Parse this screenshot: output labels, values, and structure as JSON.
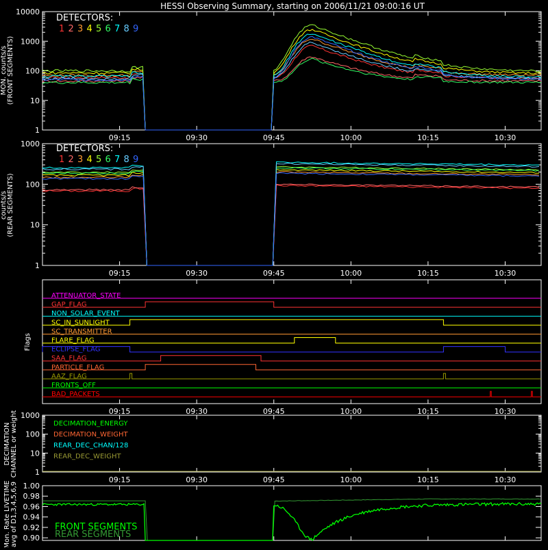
{
  "title": "HESSI Observing Summary, starting on 2006/11/21 09:00:16 UT",
  "time_ticks": [
    "09:15",
    "09:30",
    "09:45",
    "10:00",
    "10:15",
    "10:30"
  ],
  "detector_colors": [
    "#ff3333",
    "#ff6666",
    "#ff9933",
    "#ffff00",
    "#99ff33",
    "#33ff66",
    "#00ffff",
    "#66ccff",
    "#3366ff"
  ],
  "chart_data": [
    {
      "type": "line",
      "id": "front",
      "ylabel_lines": [
        "MON. counts/s",
        "(FRONT SEGMENTS)"
      ],
      "scale": "log",
      "ylim": [
        1,
        10000
      ],
      "ytick_labels": [
        "1",
        "10",
        "100",
        "1000",
        "10000"
      ],
      "legend": {
        "title": "DETECTORS:",
        "labels": [
          "1",
          "2",
          "3",
          "4",
          "5",
          "6",
          "7",
          "8",
          "9"
        ],
        "placement": "top-left"
      },
      "x_unit": "minutes after 09:00:16",
      "gap": [
        20,
        45
      ],
      "series": [
        {
          "base1": 60,
          "base2": 55,
          "peak": 700
        },
        {
          "base1": 45,
          "base2": 45,
          "peak": 300
        },
        {
          "base1": 70,
          "base2": 70,
          "peak": 1200
        },
        {
          "base1": 85,
          "base2": 80,
          "peak": 2500
        },
        {
          "base1": 100,
          "base2": 95,
          "peak": 3500
        },
        {
          "base1": 40,
          "base2": 40,
          "peak": 250
        },
        {
          "base1": 65,
          "base2": 60,
          "peak": 1800
        },
        {
          "base1": 55,
          "base2": 55,
          "peak": 900
        },
        {
          "base1": 50,
          "base2": 50,
          "peak": 1400
        }
      ]
    },
    {
      "type": "line",
      "id": "rear",
      "ylabel_lines": [
        "counts/s",
        "(REAR SEGMENTS)"
      ],
      "scale": "log",
      "ylim": [
        1,
        1000
      ],
      "ytick_labels": [
        "1",
        "10",
        "100",
        "1000"
      ],
      "legend": {
        "title": "DETECTORS:",
        "labels": [
          "1",
          "2",
          "3",
          "4",
          "5",
          "6",
          "7",
          "8",
          "9"
        ],
        "placement": "top-left"
      },
      "gap": [
        20,
        45
      ],
      "series": [
        {
          "level": 70
        },
        {
          "level": 75
        },
        {
          "level": 150
        },
        {
          "level": 170
        },
        {
          "level": 200
        },
        {
          "level": 190
        },
        {
          "level": 260
        },
        {
          "level": 240
        },
        {
          "level": 140
        }
      ]
    },
    {
      "type": "flags",
      "id": "flags",
      "ylabel": "Flags",
      "rows": [
        {
          "label": "ATTENUATOR_STATE",
          "color": "#ff00ff",
          "on": []
        },
        {
          "label": "GAP_FLAG",
          "color": "#ff3333",
          "on": [
            [
              20,
              45
            ]
          ]
        },
        {
          "label": "NON_SOLAR_EVENT",
          "color": "#00ffff",
          "on": []
        },
        {
          "label": "SC_IN_SUNLIGHT",
          "color": "#ffff00",
          "on": [
            [
              17,
              78
            ]
          ]
        },
        {
          "label": "SC_TRANSMITTER",
          "color": "#ff9933",
          "on": []
        },
        {
          "label": "FLARE_FLAG",
          "color": "#ffff00",
          "on": [
            [
              49,
              57
            ]
          ]
        },
        {
          "label": "ECLIPSE_FLAG",
          "color": "#3333ff",
          "on": [
            [
              0,
              17
            ],
            [
              78,
              90
            ]
          ]
        },
        {
          "label": "SAA_FLAG",
          "color": "#ff3333",
          "on": [
            [
              23,
              42.5
            ]
          ]
        },
        {
          "label": "PARTICLE_FLAG",
          "color": "#ff6633",
          "on": [
            [
              20,
              41.5
            ]
          ]
        },
        {
          "label": "AAZ_FLAG",
          "color": "#999900",
          "on": [
            [
              17,
              17.4
            ],
            [
              78,
              78.4
            ]
          ]
        },
        {
          "label": "FRONTS_OFF",
          "color": "#00ff00",
          "on": []
        },
        {
          "label": "BAD_PACKETS",
          "color": "#ff0000",
          "on": [
            [
              87.1,
              87.3
            ],
            [
              95.1,
              95.3
            ]
          ]
        }
      ]
    },
    {
      "type": "line",
      "id": "decimation",
      "ylabel_lines": [
        "DECIMATION",
        "CHANNEL or weight"
      ],
      "scale": "log",
      "ylim": [
        1,
        1000
      ],
      "ytick_labels": [
        "1",
        "10",
        "100",
        "1000"
      ],
      "legend_entries": [
        {
          "label": "DECIMATION_ENERGY",
          "color": "#00ff00"
        },
        {
          "label": "DECIMATION_WEIGHT",
          "color": "#ff6633"
        },
        {
          "label": "REAR_DEC_CHAN/128",
          "color": "#00ffff"
        },
        {
          "label": "REAR_DEC_WEIGHT",
          "color": "#999933"
        }
      ]
    },
    {
      "type": "line",
      "id": "livetime",
      "ylabel_lines": [
        "Mon. Rate LIVETIME",
        "avg of D1,3,4,5,6,9"
      ],
      "scale": "linear",
      "ylim": [
        0.895,
        1.0
      ],
      "ytick_values": [
        0.9,
        0.92,
        0.94,
        0.96,
        0.98,
        1.0
      ],
      "ytick_labels": [
        "0.90",
        "0.92",
        "0.94",
        "0.96",
        "0.98",
        "1.00"
      ],
      "gap": [
        20,
        45
      ],
      "legend_entries": [
        {
          "label": "FRONT SEGMENTS",
          "color": "#00ff00"
        },
        {
          "label": "REAR SEGMENTS",
          "color": "#339933"
        }
      ]
    }
  ]
}
